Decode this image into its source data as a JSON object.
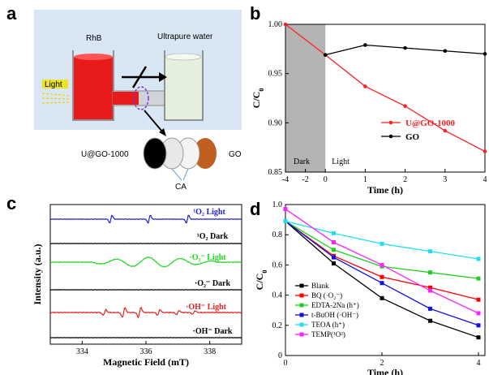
{
  "panels": {
    "a": "a",
    "b": "b",
    "c": "c",
    "d": "d"
  },
  "schematic": {
    "left_label": "RhB",
    "right_label": "Ultrapure water",
    "light_label": "Light",
    "material_label": "U@GO-1000",
    "go_label": "GO",
    "ca_label": "CA",
    "colors": {
      "rhb": "#e81a1a",
      "water": "#e4efdd",
      "go": "#c06020",
      "material": "#000000",
      "light": "#f0e000"
    }
  },
  "chart_data": [
    {
      "type": "line",
      "panel": "b",
      "xlabel": "Time (h)",
      "ylabel": "C/C0",
      "xlim": [
        -4,
        4
      ],
      "ylim": [
        0.85,
        1.0
      ],
      "xticks": [
        "-4",
        "-2",
        "0",
        "1",
        "2",
        "3",
        "4"
      ],
      "yticks": [
        "0.85",
        "0.90",
        "0.95",
        "1.00"
      ],
      "regions": [
        {
          "label": "Dark",
          "from": -4,
          "to": 0,
          "color": "#b4b4b4"
        },
        {
          "label": "Light",
          "from": 0,
          "to": 4,
          "color": "#ffffff"
        }
      ],
      "legend_position": "right",
      "series": [
        {
          "name": "U@GO-1000",
          "color": "#ff2020",
          "x": [
            -4,
            0,
            1,
            2,
            3,
            4
          ],
          "y": [
            1.0,
            0.969,
            0.937,
            0.917,
            0.892,
            0.871
          ]
        },
        {
          "name": "GO",
          "color": "#000000",
          "x": [
            0,
            1,
            2,
            3,
            4
          ],
          "y": [
            0.969,
            0.979,
            0.976,
            0.973,
            0.97
          ]
        }
      ]
    },
    {
      "type": "line",
      "panel": "c",
      "xlabel": "Magnetic Field (mT)",
      "ylabel": "Intensity (a.u.)",
      "xlim": [
        333,
        339
      ],
      "xticks": [
        "334",
        "336",
        "338"
      ],
      "series": [
        {
          "name": "¹O₂ Light",
          "color": "#2020d8"
        },
        {
          "name": "¹O₂ Dark",
          "color": "#000000"
        },
        {
          "name": "·O₂⁻ Light",
          "color": "#20d820"
        },
        {
          "name": "·O₂⁻ Dark",
          "color": "#000000"
        },
        {
          "name": "·OH⁻ Light",
          "color": "#e82020"
        },
        {
          "name": "·OH⁻ Dark",
          "color": "#000000"
        }
      ]
    },
    {
      "type": "line",
      "panel": "d",
      "xlabel": "Time (h)",
      "ylabel": "C/C0",
      "xlim": [
        0,
        4
      ],
      "ylim": [
        0,
        1.0
      ],
      "xticks": [
        "0",
        "2",
        "4"
      ],
      "yticks": [
        "0",
        "0.2",
        "0.4",
        "0.6",
        "0.8",
        "1.0"
      ],
      "legend_position": "bottom-left",
      "x": [
        0,
        1,
        2,
        3,
        4
      ],
      "series": [
        {
          "name": "Blank",
          "color": "#000000",
          "marker": "square",
          "values": [
            0.89,
            0.61,
            0.38,
            0.23,
            0.12
          ]
        },
        {
          "name": "BQ (·O₂⁻)",
          "color": "#ff0000",
          "marker": "square",
          "values": [
            0.89,
            0.66,
            0.52,
            0.45,
            0.37
          ]
        },
        {
          "name": "EDTA-2Na (h⁺)",
          "color": "#20d020",
          "marker": "square",
          "values": [
            0.89,
            0.7,
            0.59,
            0.55,
            0.51
          ]
        },
        {
          "name": "t-BuOH (·OH⁻)",
          "color": "#1010e0",
          "marker": "square",
          "values": [
            0.89,
            0.65,
            0.48,
            0.31,
            0.2
          ]
        },
        {
          "name": "TEOA (h⁺)",
          "color": "#20e0f0",
          "marker": "square",
          "values": [
            0.89,
            0.81,
            0.74,
            0.69,
            0.64
          ]
        },
        {
          "name": "TEMP(¹O²)",
          "color": "#ff20ff",
          "marker": "square",
          "values": [
            0.97,
            0.75,
            0.6,
            0.43,
            0.28
          ]
        }
      ]
    }
  ]
}
